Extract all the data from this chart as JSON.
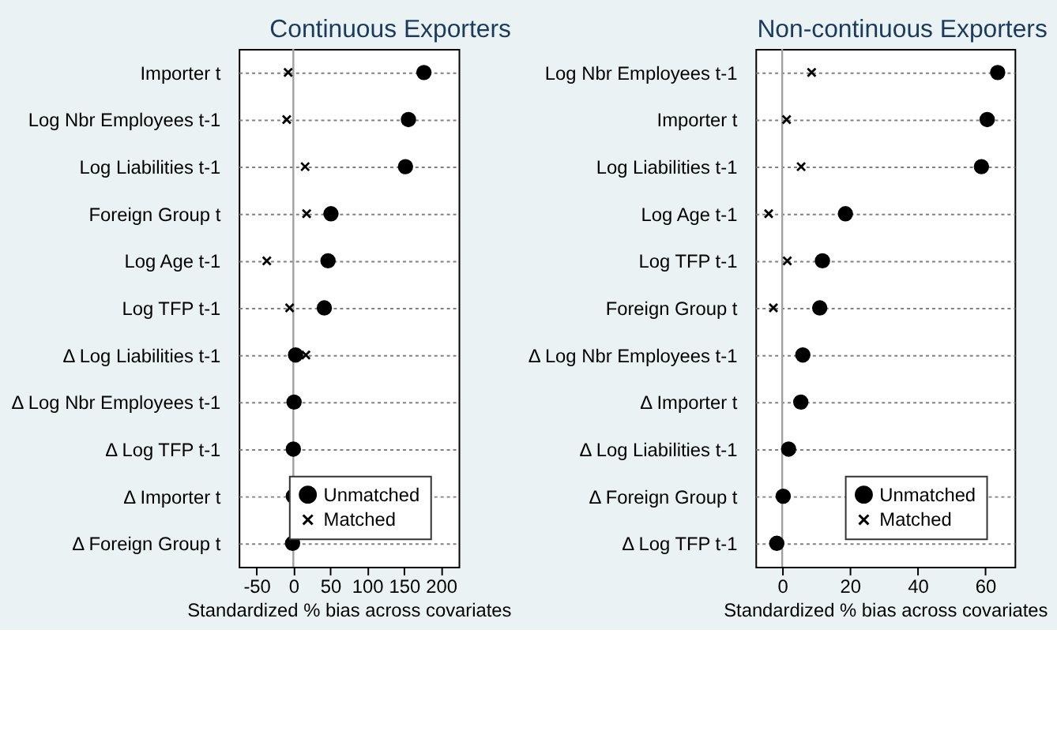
{
  "chart_data": [
    {
      "type": "scatter",
      "orientation": "horizontal",
      "title": "Continuous Exporters",
      "xlabel": "Standardized % bias across covariates",
      "categories": [
        "Importer t",
        "Log Nbr Employees t-1",
        "Log Liabilities t-1",
        "Foreign Group t",
        "Log Age t-1",
        "Log TFP t-1",
        "Δ Log Liabilities t-1",
        "Δ Log Nbr Employees t-1",
        "Δ Log TFP t-1",
        "Δ Importer t",
        "Δ Foreign Group t"
      ],
      "xlim": [
        -74,
        224
      ],
      "xticks": [
        -50,
        0,
        50,
        100,
        150,
        200
      ],
      "grid": "y",
      "legend": "bottom right",
      "ref_lines": [
        {
          "axis": "x",
          "value": 0,
          "color": "#a0a0a0"
        }
      ],
      "series": [
        {
          "name": "Unmatched",
          "color": "#000000",
          "marker": "circle",
          "values": [
            177,
            156,
            152,
            51,
            47,
            42,
            3,
            1,
            0,
            0,
            -1
          ]
        },
        {
          "name": "Matched",
          "color": "#000000",
          "marker": "cross",
          "values": [
            -7,
            -9,
            16,
            18,
            -36,
            -5,
            17,
            null,
            null,
            null,
            null
          ]
        }
      ]
    },
    {
      "type": "scatter",
      "orientation": "horizontal",
      "title": "Non-continuous Exporters",
      "xlabel": "Standardized % bias across covariates",
      "categories": [
        "Log Nbr Employees t-1",
        "Importer t",
        "Log Liabilities t-1",
        "Log Age t-1",
        "Log TFP t-1",
        "Foreign Group t",
        "Δ Log Nbr Employees t-1",
        "Δ Importer t",
        "Δ Log Liabilities t-1",
        "Δ Foreign Group t",
        "Δ Log TFP t-1"
      ],
      "xlim": [
        -7.9,
        68.7
      ],
      "xticks": [
        0,
        20,
        40,
        60
      ],
      "grid": "y",
      "legend": "bottom right",
      "ref_lines": [
        {
          "axis": "x",
          "value": 0,
          "color": "#a0a0a0"
        }
      ],
      "series": [
        {
          "name": "Unmatched",
          "color": "#000000",
          "marker": "circle",
          "values": [
            63.7,
            60.6,
            58.9,
            18.7,
            11.9,
            11.1,
            6.1,
            5.5,
            1.9,
            0.3,
            -1.6
          ]
        },
        {
          "name": "Matched",
          "color": "#000000",
          "marker": "cross",
          "values": [
            8.7,
            1.3,
            5.6,
            -4,
            1.5,
            -2.6,
            null,
            null,
            null,
            null,
            null
          ]
        }
      ]
    }
  ]
}
